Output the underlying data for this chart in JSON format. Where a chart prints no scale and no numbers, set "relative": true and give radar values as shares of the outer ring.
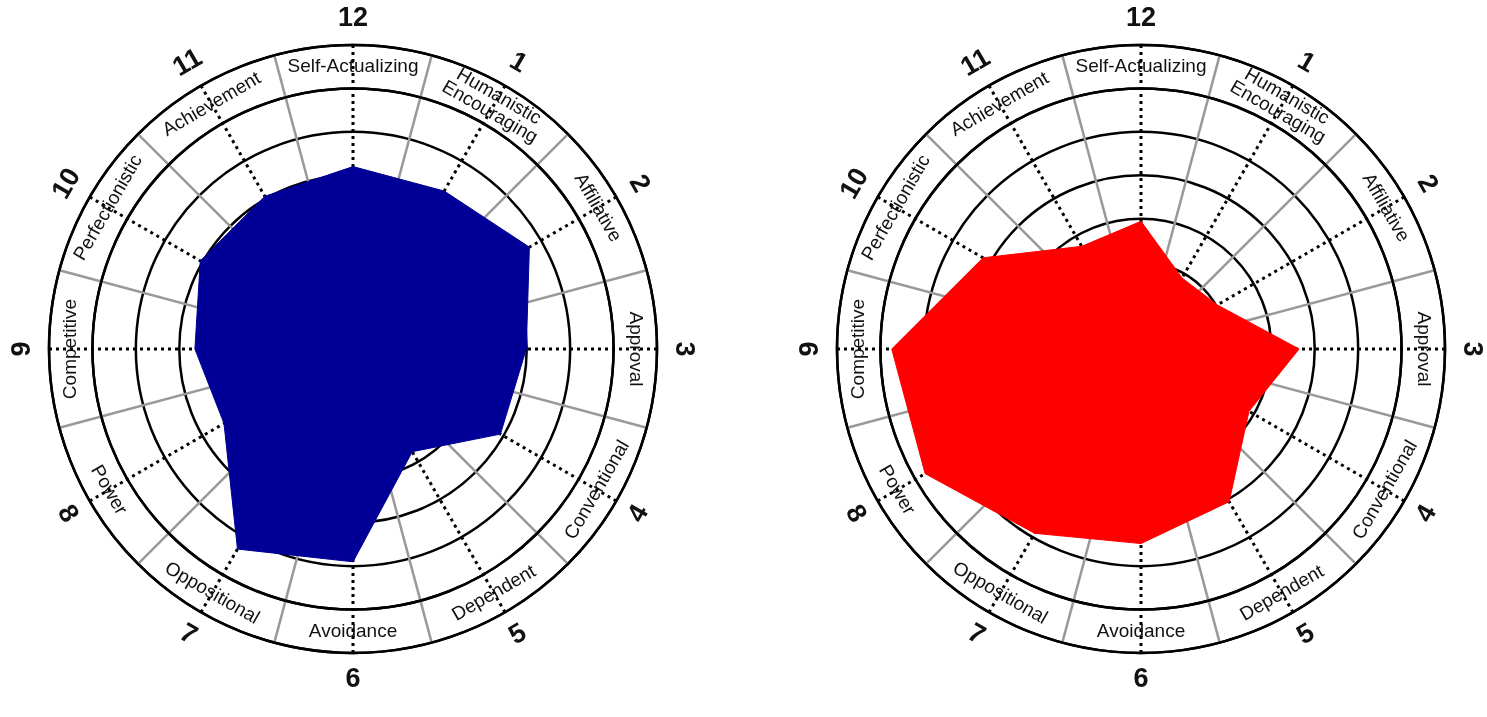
{
  "chart_data": [
    {
      "type": "radar",
      "relative": true,
      "grid": true,
      "categories": [
        "Self-Actualizing",
        "Humanistic\nEncouraging",
        "Affiliative",
        "Approval",
        "Conventional",
        "Dependent",
        "Avoidance",
        "Oppositional",
        "Power",
        "Competitive",
        "Perfectionistic",
        "Achievement"
      ],
      "series": [
        {
          "color": "#000096",
          "values": [
            0.6,
            0.6,
            0.67,
            0.57,
            0.56,
            0.39,
            0.7,
            0.76,
            0.49,
            0.52,
            0.58,
            0.58
          ]
        }
      ],
      "annotations": [
        {
          "text": "12",
          "x": "Self-Actualizing"
        },
        {
          "text": "1",
          "x": "Humanistic\nEncouraging"
        },
        {
          "text": "2",
          "x": "Affiliative"
        },
        {
          "text": "3",
          "x": "Approval"
        },
        {
          "text": "4",
          "x": "Conventional"
        },
        {
          "text": "5",
          "x": "Dependent"
        },
        {
          "text": "6",
          "x": "Avoidance"
        },
        {
          "text": "7",
          "x": "Oppositional"
        },
        {
          "text": "8",
          "x": "Power"
        },
        {
          "text": "9",
          "x": "Competitive"
        },
        {
          "text": "10",
          "x": "Perfectionistic"
        },
        {
          "text": "11",
          "x": "Achievement"
        }
      ]
    },
    {
      "type": "radar",
      "relative": true,
      "grid": true,
      "categories": [
        "Self-Actualizing",
        "Humanistic\nEncouraging",
        "Affiliative",
        "Approval",
        "Conventional",
        "Dependent",
        "Avoidance",
        "Oppositional",
        "Power",
        "Competitive",
        "Perfectionistic",
        "Achievement"
      ],
      "series": [
        {
          "color": "#ff0000",
          "values": [
            0.42,
            0.27,
            0.29,
            0.52,
            0.41,
            0.58,
            0.64,
            0.7,
            0.82,
            0.82,
            0.6,
            0.39
          ]
        }
      ],
      "annotations": [
        {
          "text": "12",
          "x": "Self-Actualizing"
        },
        {
          "text": "1",
          "x": "Humanistic\nEncouraging"
        },
        {
          "text": "2",
          "x": "Affiliative"
        },
        {
          "text": "3",
          "x": "Approval"
        },
        {
          "text": "4",
          "x": "Conventional"
        },
        {
          "text": "5",
          "x": "Dependent"
        },
        {
          "text": "6",
          "x": "Avoidance"
        },
        {
          "text": "7",
          "x": "Oppositional"
        },
        {
          "text": "8",
          "x": "Power"
        },
        {
          "text": "9",
          "x": "Competitive"
        },
        {
          "text": "10",
          "x": "Perfectionistic"
        },
        {
          "text": "11",
          "x": "Achievement"
        }
      ]
    }
  ]
}
